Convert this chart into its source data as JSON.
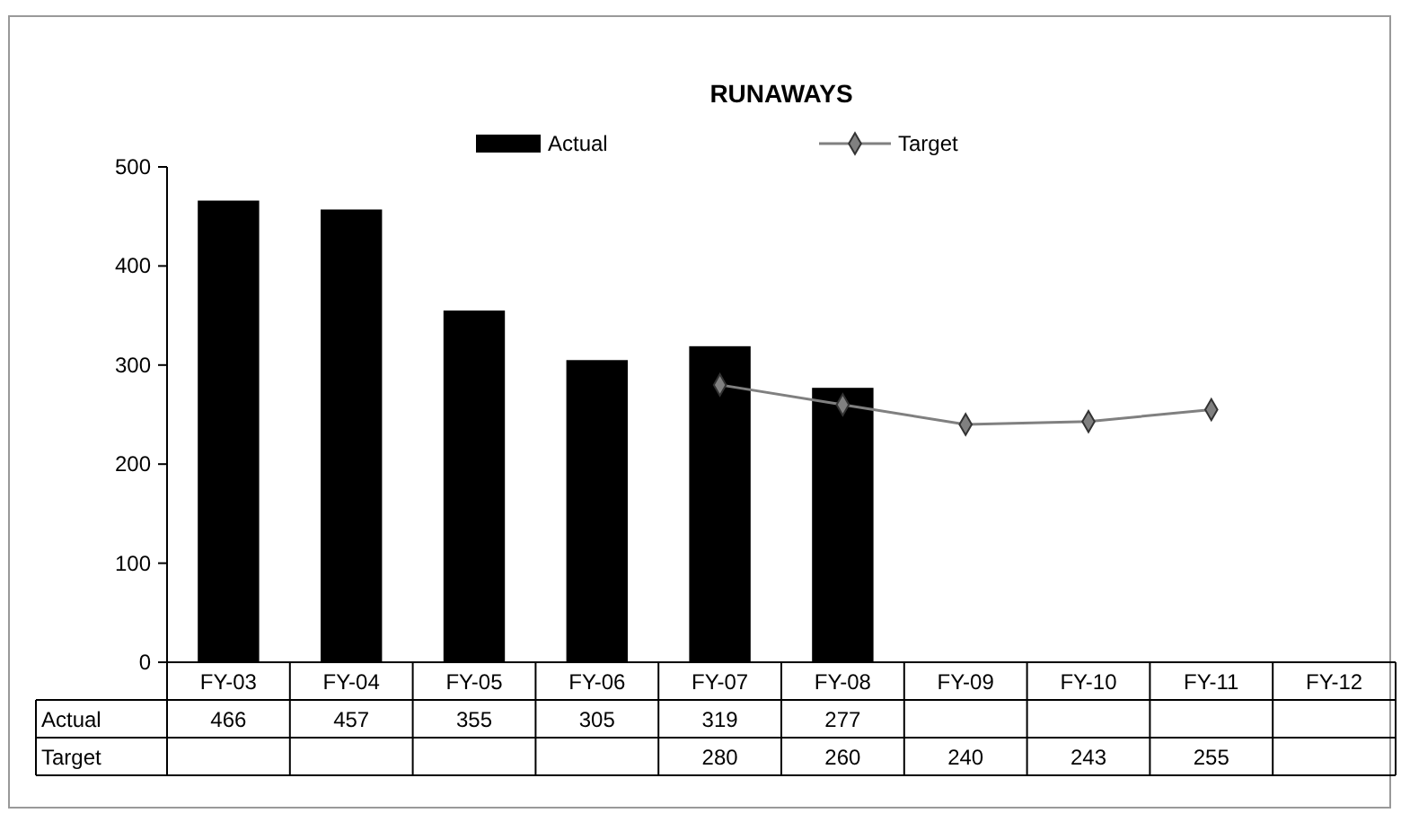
{
  "chart_data": {
    "type": "bar",
    "title": "RUNAWAYS",
    "categories": [
      "FY-03",
      "FY-04",
      "FY-05",
      "FY-06",
      "FY-07",
      "FY-08",
      "FY-09",
      "FY-10",
      "FY-11",
      "FY-12"
    ],
    "series": [
      {
        "name": "Actual",
        "color": "#000000",
        "values": [
          466,
          457,
          355,
          305,
          319,
          277,
          null,
          null,
          null,
          null
        ]
      },
      {
        "name": "Target",
        "type": "line",
        "color": "#808080",
        "marker": "diamond",
        "values": [
          null,
          null,
          null,
          null,
          280,
          260,
          240,
          243,
          255,
          null
        ]
      }
    ],
    "ylim": [
      0,
      500
    ],
    "yticks": [
      0,
      100,
      200,
      300,
      400,
      500
    ],
    "grid": false,
    "legend": "top",
    "data_labels": true
  }
}
